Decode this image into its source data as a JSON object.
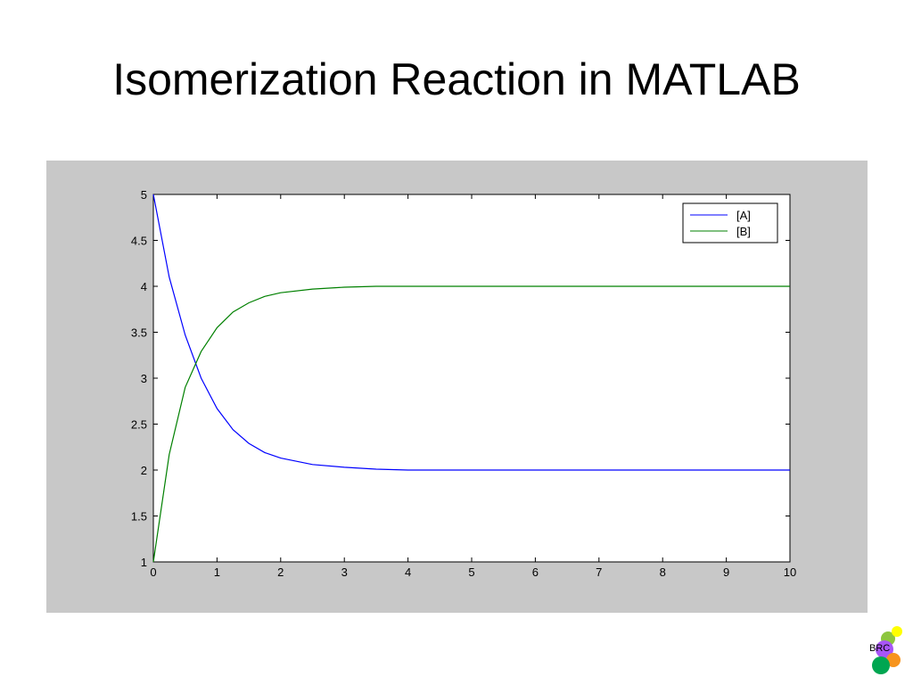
{
  "slide": {
    "title": "Isomerization Reaction in MATLAB",
    "logo_text": "BRC"
  },
  "colors": {
    "panel_bg": "#c8c8c8",
    "plot_bg": "#ffffff",
    "series_A": "#0000ff",
    "series_B": "#008000",
    "logo_circles": [
      "#8dc63f",
      "#ffff00",
      "#a855f7",
      "#f7941d",
      "#00a651"
    ]
  },
  "chart_data": {
    "type": "line",
    "title": "",
    "xlabel": "",
    "ylabel": "",
    "xlim": [
      0,
      10
    ],
    "ylim": [
      1,
      5
    ],
    "xticks": [
      0,
      1,
      2,
      3,
      4,
      5,
      6,
      7,
      8,
      9,
      10
    ],
    "xtick_labels": [
      "0",
      "1",
      "2",
      "3",
      "4",
      "5",
      "6",
      "7",
      "8",
      "9",
      "10"
    ],
    "yticks": [
      1,
      1.5,
      2,
      2.5,
      3,
      3.5,
      4,
      4.5,
      5
    ],
    "ytick_labels": [
      "1",
      "1.5",
      "2",
      "2.5",
      "3",
      "3.5",
      "4",
      "4.5",
      "5"
    ],
    "grid": false,
    "legend_position": "top-right",
    "x": [
      0,
      0.25,
      0.5,
      0.75,
      1,
      1.25,
      1.5,
      1.75,
      2,
      2.5,
      3,
      3.5,
      4,
      5,
      6,
      7,
      8,
      9,
      10
    ],
    "series": [
      {
        "name": "[A]",
        "color": "#0000ff",
        "values": [
          5,
          4.1,
          3.47,
          3.0,
          2.67,
          2.44,
          2.29,
          2.19,
          2.13,
          2.06,
          2.03,
          2.01,
          2.0,
          2.0,
          2.0,
          2.0,
          2.0,
          2.0,
          2.0
        ]
      },
      {
        "name": "[B]",
        "color": "#008000",
        "values": [
          1,
          2.17,
          2.9,
          3.29,
          3.55,
          3.72,
          3.82,
          3.89,
          3.93,
          3.97,
          3.99,
          4.0,
          4.0,
          4.0,
          4.0,
          4.0,
          4.0,
          4.0,
          4.0
        ]
      }
    ]
  }
}
